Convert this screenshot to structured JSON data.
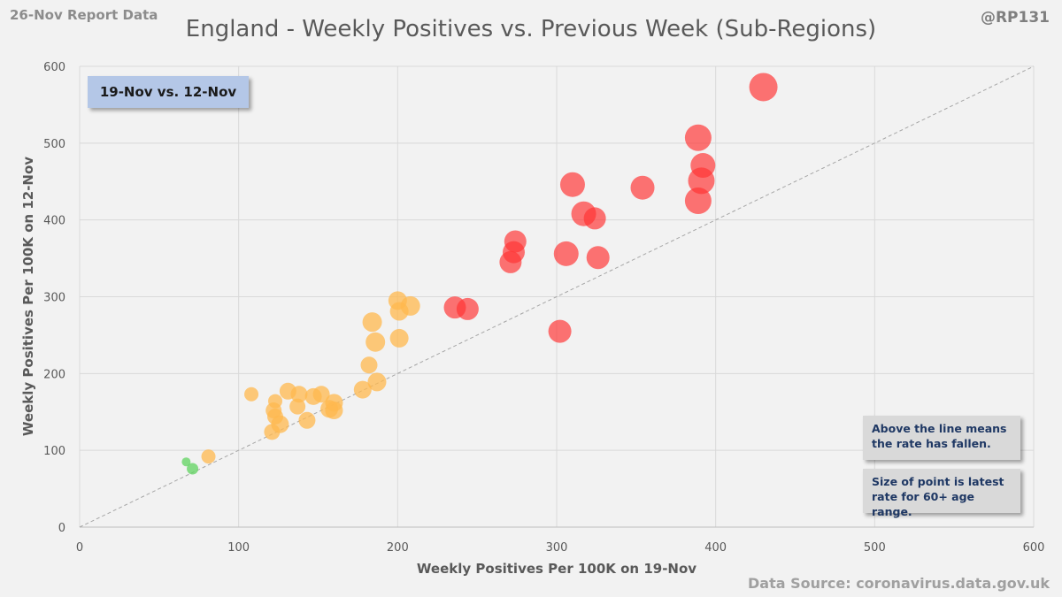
{
  "header": {
    "report_label": "26-Nov Report Data",
    "handle": "@RP131",
    "title": "England - Weekly Positives vs. Previous Week (Sub-Regions)"
  },
  "footer": {
    "source": "Data Source: coronavirus.data.gov.uk"
  },
  "annotations": {
    "date_box": "19-Nov vs. 12-Nov",
    "note_line_1": "Above the line means",
    "note_line_2": "the rate has fallen.",
    "note_size_1": "Size of point is latest",
    "note_size_2": "rate for 60+ age range."
  },
  "colors": {
    "green": "#5fd35f",
    "orange": "#ffb84d",
    "red": "#ff3333",
    "grid": "#d9d9d9",
    "diagonal": "#a6a6a6"
  },
  "chart_data": {
    "type": "scatter",
    "title": "England - Weekly Positives vs. Previous Week (Sub-Regions)",
    "xlabel": "Weekly Positives Per 100K on 19-Nov",
    "ylabel": "Weekly Positives Per 100K on 12-Nov",
    "xlim": [
      0,
      600
    ],
    "ylim": [
      0,
      600
    ],
    "x_ticks": [
      0,
      100,
      200,
      300,
      400,
      500,
      600
    ],
    "y_ticks": [
      0,
      100,
      200,
      300,
      400,
      500,
      600
    ],
    "grid": true,
    "reference_line": {
      "from": [
        0,
        0
      ],
      "to": [
        600,
        600
      ],
      "style": "dashed"
    },
    "points": [
      {
        "x": 67,
        "y": 85,
        "size": 1.0,
        "color": "green"
      },
      {
        "x": 71,
        "y": 76,
        "size": 1.3,
        "color": "green"
      },
      {
        "x": 81,
        "y": 92,
        "size": 1.6,
        "color": "orange"
      },
      {
        "x": 108,
        "y": 173,
        "size": 1.6,
        "color": "orange"
      },
      {
        "x": 121,
        "y": 124,
        "size": 1.8,
        "color": "orange"
      },
      {
        "x": 122,
        "y": 152,
        "size": 1.8,
        "color": "orange"
      },
      {
        "x": 123,
        "y": 144,
        "size": 1.8,
        "color": "orange"
      },
      {
        "x": 123,
        "y": 164,
        "size": 1.6,
        "color": "orange"
      },
      {
        "x": 126,
        "y": 134,
        "size": 2.0,
        "color": "orange"
      },
      {
        "x": 131,
        "y": 177,
        "size": 1.9,
        "color": "orange"
      },
      {
        "x": 138,
        "y": 173,
        "size": 1.9,
        "color": "orange"
      },
      {
        "x": 137,
        "y": 157,
        "size": 1.8,
        "color": "orange"
      },
      {
        "x": 143,
        "y": 139,
        "size": 1.9,
        "color": "orange"
      },
      {
        "x": 147,
        "y": 170,
        "size": 1.9,
        "color": "orange"
      },
      {
        "x": 152,
        "y": 173,
        "size": 1.9,
        "color": "orange"
      },
      {
        "x": 157,
        "y": 154,
        "size": 2.0,
        "color": "orange"
      },
      {
        "x": 160,
        "y": 162,
        "size": 2.0,
        "color": "orange"
      },
      {
        "x": 160,
        "y": 152,
        "size": 2.0,
        "color": "orange"
      },
      {
        "x": 178,
        "y": 179,
        "size": 2.0,
        "color": "orange"
      },
      {
        "x": 182,
        "y": 211,
        "size": 1.9,
        "color": "orange"
      },
      {
        "x": 184,
        "y": 267,
        "size": 2.2,
        "color": "orange"
      },
      {
        "x": 186,
        "y": 241,
        "size": 2.2,
        "color": "orange"
      },
      {
        "x": 187,
        "y": 189,
        "size": 2.1,
        "color": "orange"
      },
      {
        "x": 200,
        "y": 295,
        "size": 2.1,
        "color": "orange"
      },
      {
        "x": 201,
        "y": 281,
        "size": 2.1,
        "color": "orange"
      },
      {
        "x": 201,
        "y": 246,
        "size": 2.1,
        "color": "orange"
      },
      {
        "x": 208,
        "y": 288,
        "size": 2.2,
        "color": "orange"
      },
      {
        "x": 236,
        "y": 286,
        "size": 2.5,
        "color": "red"
      },
      {
        "x": 244,
        "y": 284,
        "size": 2.5,
        "color": "red"
      },
      {
        "x": 271,
        "y": 345,
        "size": 2.5,
        "color": "red"
      },
      {
        "x": 273,
        "y": 358,
        "size": 2.5,
        "color": "red"
      },
      {
        "x": 274,
        "y": 372,
        "size": 2.5,
        "color": "red"
      },
      {
        "x": 302,
        "y": 255,
        "size": 2.6,
        "color": "red"
      },
      {
        "x": 306,
        "y": 356,
        "size": 2.8,
        "color": "red"
      },
      {
        "x": 310,
        "y": 446,
        "size": 2.8,
        "color": "red"
      },
      {
        "x": 317,
        "y": 408,
        "size": 2.8,
        "color": "red"
      },
      {
        "x": 324,
        "y": 402,
        "size": 2.5,
        "color": "red"
      },
      {
        "x": 326,
        "y": 351,
        "size": 2.6,
        "color": "red"
      },
      {
        "x": 354,
        "y": 442,
        "size": 2.7,
        "color": "red"
      },
      {
        "x": 389,
        "y": 507,
        "size": 3.0,
        "color": "red"
      },
      {
        "x": 392,
        "y": 471,
        "size": 2.8,
        "color": "red"
      },
      {
        "x": 391,
        "y": 451,
        "size": 3.0,
        "color": "red"
      },
      {
        "x": 389,
        "y": 425,
        "size": 3.0,
        "color": "red"
      },
      {
        "x": 430,
        "y": 573,
        "size": 3.2,
        "color": "red"
      }
    ]
  }
}
